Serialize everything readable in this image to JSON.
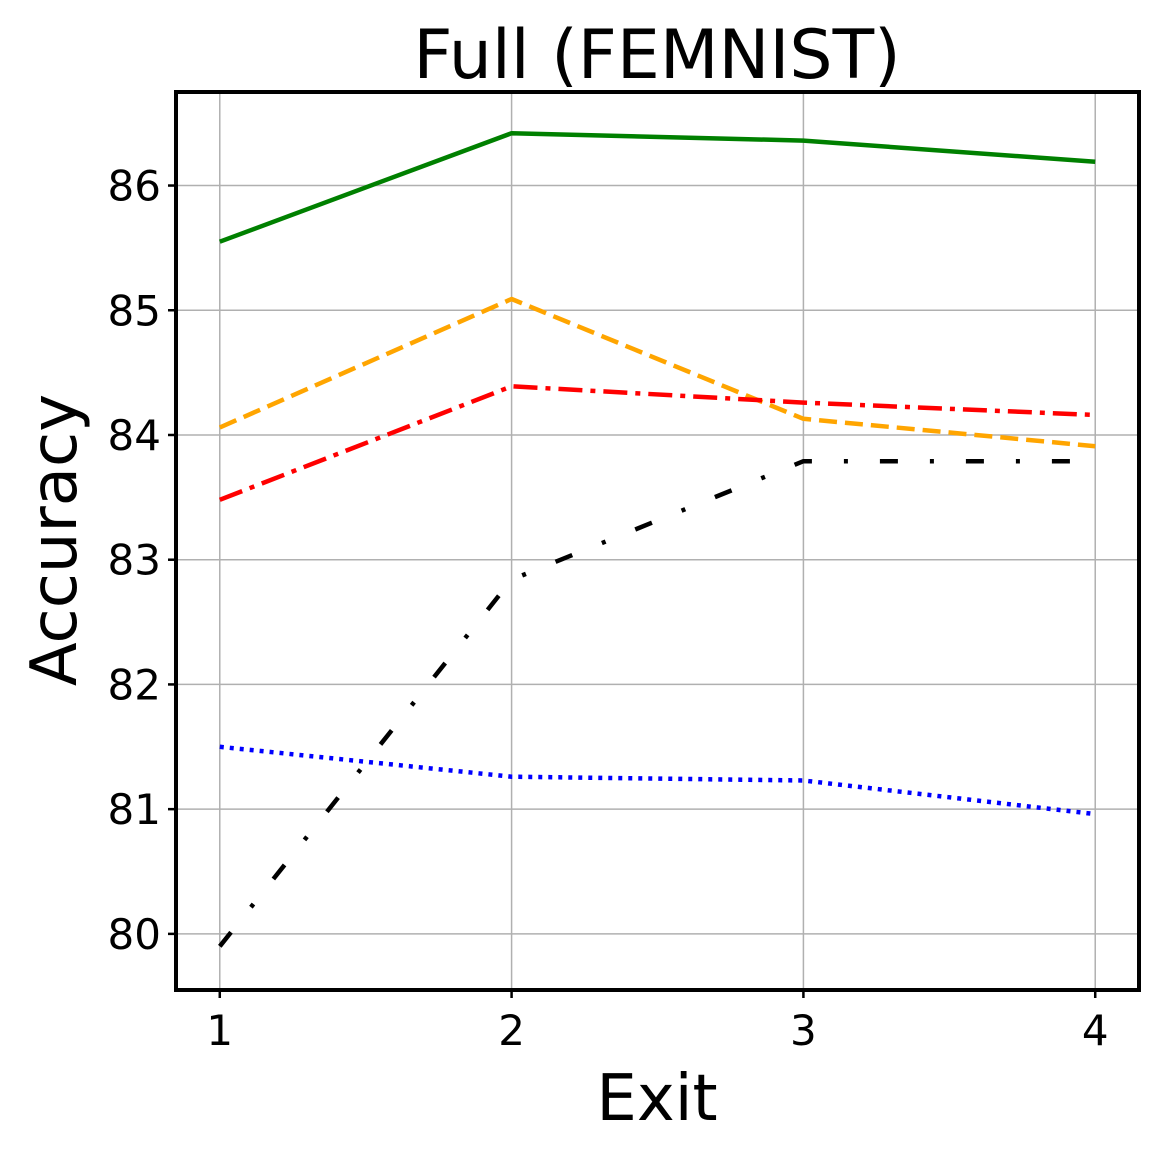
{
  "chart_data": {
    "type": "line",
    "title": "Full (FEMNIST)",
    "xlabel": "Exit",
    "ylabel": "Accuracy",
    "x": [
      1,
      2,
      3,
      4
    ],
    "x_tick_labels": [
      "1",
      "2",
      "3",
      "4"
    ],
    "xlim": [
      0.85,
      4.15
    ],
    "ylim": [
      79.55,
      86.75
    ],
    "y_ticks": [
      80,
      81,
      82,
      83,
      84,
      85,
      86
    ],
    "y_tick_labels": [
      "80",
      "81",
      "82",
      "83",
      "84",
      "85",
      "86"
    ],
    "grid": true,
    "legend": "none",
    "series": [
      {
        "values": [
          85.55,
          86.42,
          86.36,
          86.19
        ],
        "color": "#008000",
        "style": "solid"
      },
      {
        "values": [
          84.06,
          85.09,
          84.13,
          83.91
        ],
        "color": "#FFA500",
        "style": "dashed"
      },
      {
        "values": [
          83.48,
          84.39,
          84.26,
          84.16
        ],
        "color": "#FF0000",
        "style": "dashdot"
      },
      {
        "values": [
          81.5,
          81.26,
          81.23,
          80.96
        ],
        "color": "#0000FF",
        "style": "dotted"
      },
      {
        "values": [
          79.9,
          82.84,
          83.79,
          83.79
        ],
        "color": "#000000",
        "style": "loose-dashdot"
      }
    ]
  }
}
